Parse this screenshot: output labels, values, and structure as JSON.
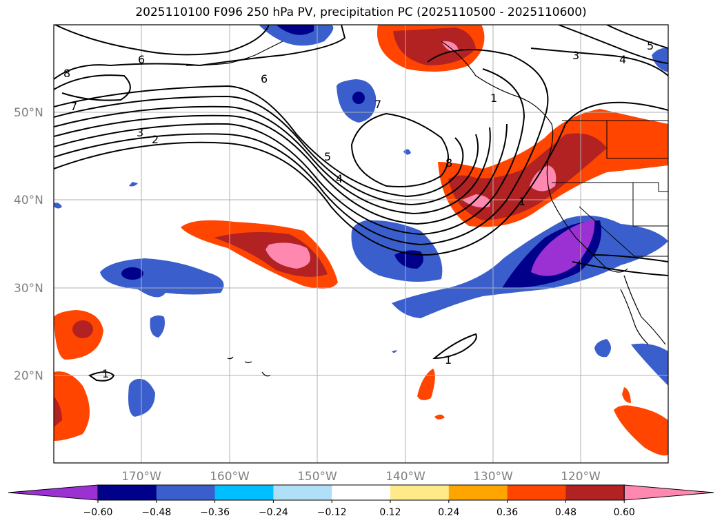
{
  "title": "2025110100 F096 250 hPa PV, precipitation PC (2025110500 - 2025110600)",
  "lat_labels": [
    "50°N",
    "40°N",
    "30°N",
    "20°N"
  ],
  "lon_labels": [
    "170°W",
    "160°W",
    "150°W",
    "140°W",
    "130°W",
    "120°W"
  ],
  "colorbar": {
    "ticks": [
      "−0.60",
      "−0.48",
      "−0.36",
      "−0.24",
      "−0.12",
      "0.12",
      "0.24",
      "0.36",
      "0.48",
      "0.60"
    ],
    "colors": [
      "#9b30d3",
      "#00008b",
      "#3a5fcd",
      "#00bfff",
      "#b0e0f8",
      "#ffffff",
      "#ffea8a",
      "#ffa500",
      "#ff4500",
      "#b22222",
      "#ff88b0"
    ]
  },
  "contour_labels": [
    "8",
    "6",
    "7",
    "3",
    "2",
    "6",
    "7",
    "5",
    "4",
    "8",
    "1",
    "1",
    "3",
    "4",
    "5",
    "1",
    "1"
  ]
}
